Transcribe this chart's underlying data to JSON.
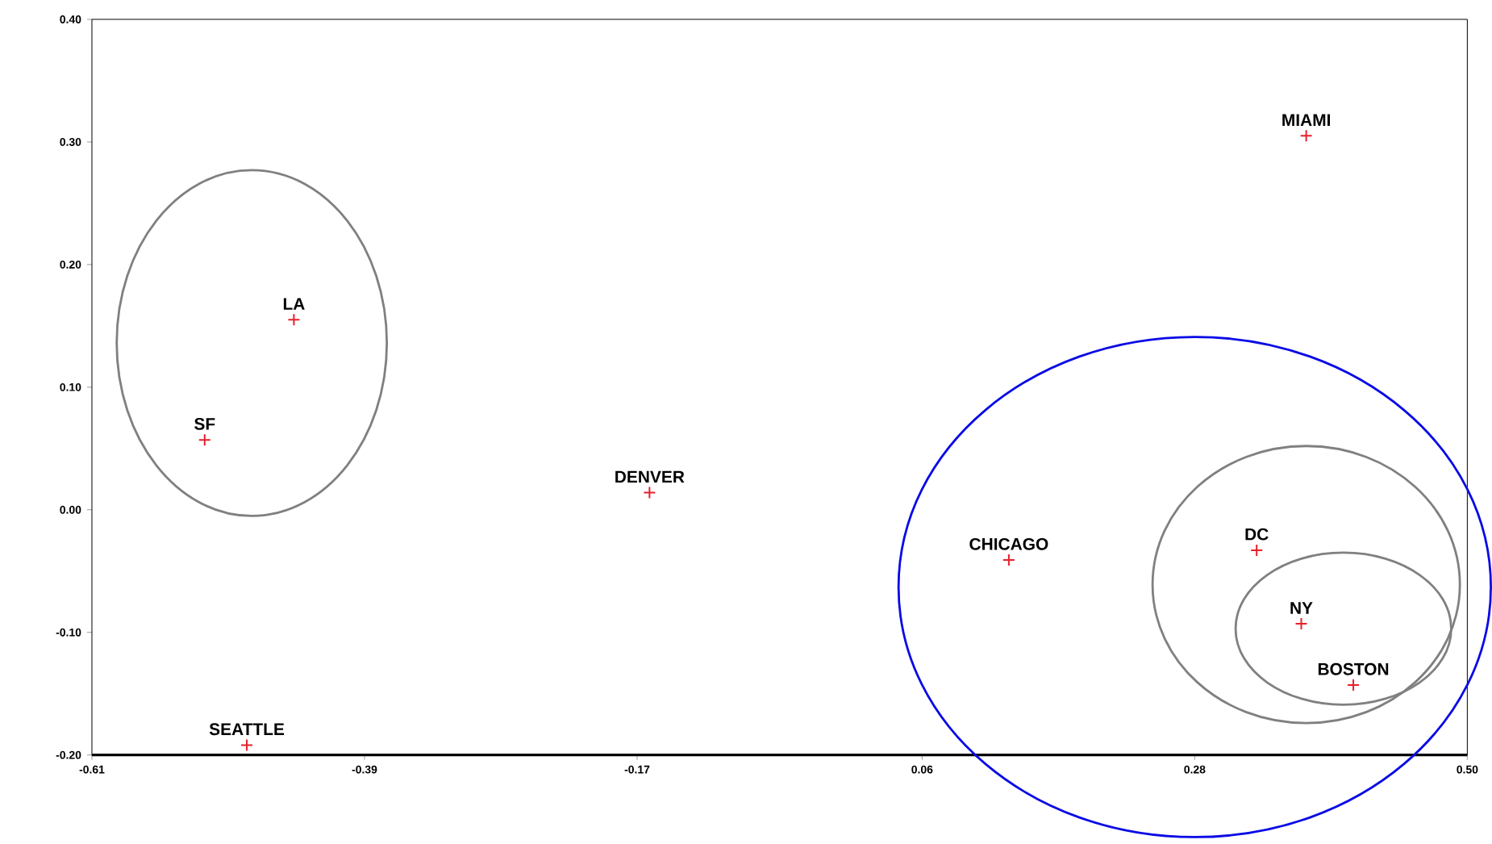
{
  "chart_data": {
    "type": "scatter",
    "marker": "cross",
    "grid": false,
    "x": [
      0.37,
      -0.447,
      -0.519,
      -0.16,
      0.13,
      0.33,
      0.366,
      0.408,
      -0.485
    ],
    "values": [
      0.305,
      0.155,
      0.057,
      0.014,
      -0.041,
      -0.033,
      -0.093,
      -0.143,
      -0.192
    ],
    "color": "#e8202a",
    "annotations": [
      {
        "text": "MIAMI",
        "x": 0.37,
        "y": 0.305
      },
      {
        "text": "LA",
        "x": -0.447,
        "y": 0.155
      },
      {
        "text": "SF",
        "x": -0.519,
        "y": 0.057
      },
      {
        "text": "DENVER",
        "x": -0.16,
        "y": 0.014
      },
      {
        "text": "CHICAGO",
        "x": 0.13,
        "y": -0.041
      },
      {
        "text": "DC",
        "x": 0.33,
        "y": -0.033
      },
      {
        "text": "NY",
        "x": 0.366,
        "y": -0.093
      },
      {
        "text": "BOSTON",
        "x": 0.408,
        "y": -0.143
      },
      {
        "text": "SEATTLE",
        "x": -0.485,
        "y": -0.192
      }
    ],
    "xlim": [
      -0.61,
      0.5
    ],
    "xticks": [
      {
        "value": -0.61,
        "label": "-0.61"
      },
      {
        "value": -0.39,
        "label": "-0.39"
      },
      {
        "value": -0.17,
        "label": "-0.17"
      },
      {
        "value": 0.06,
        "label": "0.06"
      },
      {
        "value": 0.28,
        "label": "0.28"
      },
      {
        "value": 0.5,
        "label": "0.50"
      }
    ],
    "ylim": [
      -0.2,
      0.4
    ],
    "yticks": [
      {
        "value": -0.2,
        "label": "-0.20"
      },
      {
        "value": -0.1,
        "label": "-0.10"
      },
      {
        "value": 0.0,
        "label": "0.00"
      },
      {
        "value": 0.1,
        "label": "0.10"
      },
      {
        "value": 0.2,
        "label": "0.20"
      },
      {
        "value": 0.3,
        "label": "0.30"
      },
      {
        "value": 0.4,
        "label": "0.40"
      }
    ]
  }
}
